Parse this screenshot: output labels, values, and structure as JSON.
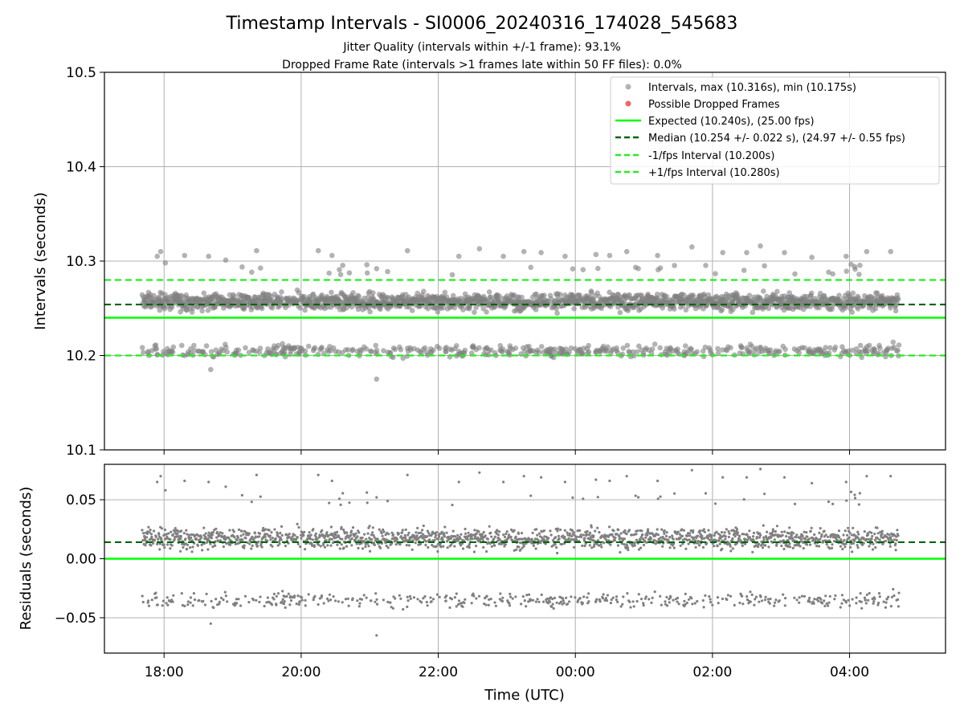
{
  "title": "Timestamp Intervals - SI0006_20240316_174028_545683",
  "subtitles": [
    "Jitter Quality (intervals within +/-1 frame): 93.1%",
    "Dropped Frame Rate (intervals >1 frames late within 50 FF files): 0.0%"
  ],
  "colors": {
    "points": "#808080",
    "dropped": "#e8413c",
    "expected": "#00ff00",
    "median": "#006400",
    "interval": "#22ee22",
    "grid": "#b0b0b0"
  },
  "chart_data": [
    {
      "type": "scatter",
      "name": "intervals-panel",
      "xlabel": "",
      "ylabel": "Intervals (seconds)",
      "xlim_hours": [
        17.13,
        29.4
      ],
      "ylim": [
        10.1,
        10.5
      ],
      "yticks": [
        10.1,
        10.2,
        10.3,
        10.4,
        10.5
      ],
      "ytick_labels": [
        "10.1",
        "10.2",
        "10.3",
        "10.4",
        "10.5"
      ],
      "xticks_hours": [
        18,
        20,
        22,
        24,
        26,
        28
      ],
      "grid": true,
      "legend_position": "top-right",
      "series": [
        {
          "name": "Intervals, max (10.316s), min (10.175s)",
          "kind": "points",
          "x_range": [
            "17:40",
            "04:43"
          ],
          "max": 10.316,
          "min": 10.175,
          "median": 10.254
        },
        {
          "name": "Possible Dropped Frames",
          "kind": "points",
          "count": 0
        },
        {
          "name": "Expected (10.240s), (25.00 fps)",
          "kind": "hline",
          "y": 10.24
        },
        {
          "name": "Median (10.254 +/- 0.022 s), (24.97 +/- 0.55 fps)",
          "kind": "hline",
          "y": 10.254
        },
        {
          "name": "-1/fps Interval (10.200s)",
          "kind": "hline",
          "y": 10.2
        },
        {
          "name": "+1/fps Interval (10.280s)",
          "kind": "hline",
          "y": 10.28
        }
      ],
      "outliers_x_hours": [
        17.9,
        17.95,
        18.02,
        18.3,
        18.65,
        18.9,
        19.35,
        20.25,
        20.45,
        21.1,
        21.55,
        22.3,
        22.6,
        22.95,
        23.25,
        23.5,
        23.85,
        24.3,
        24.5,
        24.75,
        25.2,
        25.7,
        26.15,
        26.5,
        26.7,
        27.05,
        27.45,
        27.95,
        28.25,
        28.6
      ],
      "outliers_y": [
        10.305,
        10.31,
        10.298,
        10.306,
        10.305,
        10.301,
        10.311,
        10.311,
        10.306,
        10.292,
        10.311,
        10.305,
        10.313,
        10.305,
        10.31,
        10.309,
        10.305,
        10.307,
        10.306,
        10.31,
        10.306,
        10.315,
        10.309,
        10.309,
        10.316,
        10.309,
        10.304,
        10.305,
        10.31,
        10.31
      ]
    },
    {
      "type": "scatter",
      "name": "residuals-panel",
      "xlabel": "Time (UTC)",
      "ylabel": "Residuals (seconds)",
      "xlim_hours": [
        17.13,
        29.4
      ],
      "ylim": [
        -0.08,
        0.08
      ],
      "yticks": [
        -0.05,
        0,
        0.05
      ],
      "ytick_labels": [
        "−0.05",
        "0.00",
        "0.05"
      ],
      "xticks_hours": [
        18,
        20,
        22,
        24,
        26,
        28
      ],
      "xtick_labels": [
        "18:00",
        "20:00",
        "22:00",
        "00:00",
        "02:00",
        "04:00"
      ],
      "grid": true,
      "series": [
        {
          "name": "Residuals",
          "kind": "points",
          "min": -0.065,
          "max": 0.077
        },
        {
          "name": "Expected",
          "kind": "hline",
          "y": 0
        },
        {
          "name": "Median",
          "kind": "hline",
          "y": 0.014
        }
      ]
    }
  ]
}
